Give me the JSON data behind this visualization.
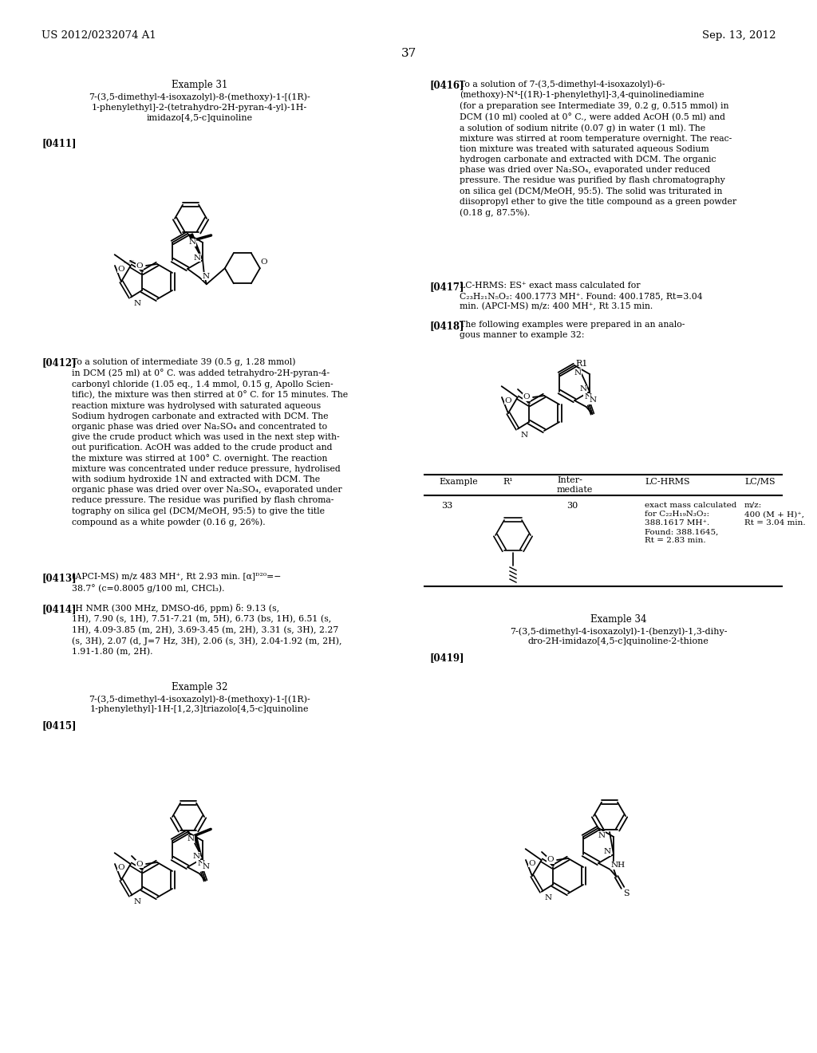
{
  "page_number": "37",
  "header_left": "US 2012/0232074 A1",
  "header_right": "Sep. 13, 2012",
  "background_color": "#ffffff",
  "text_color": "#000000"
}
